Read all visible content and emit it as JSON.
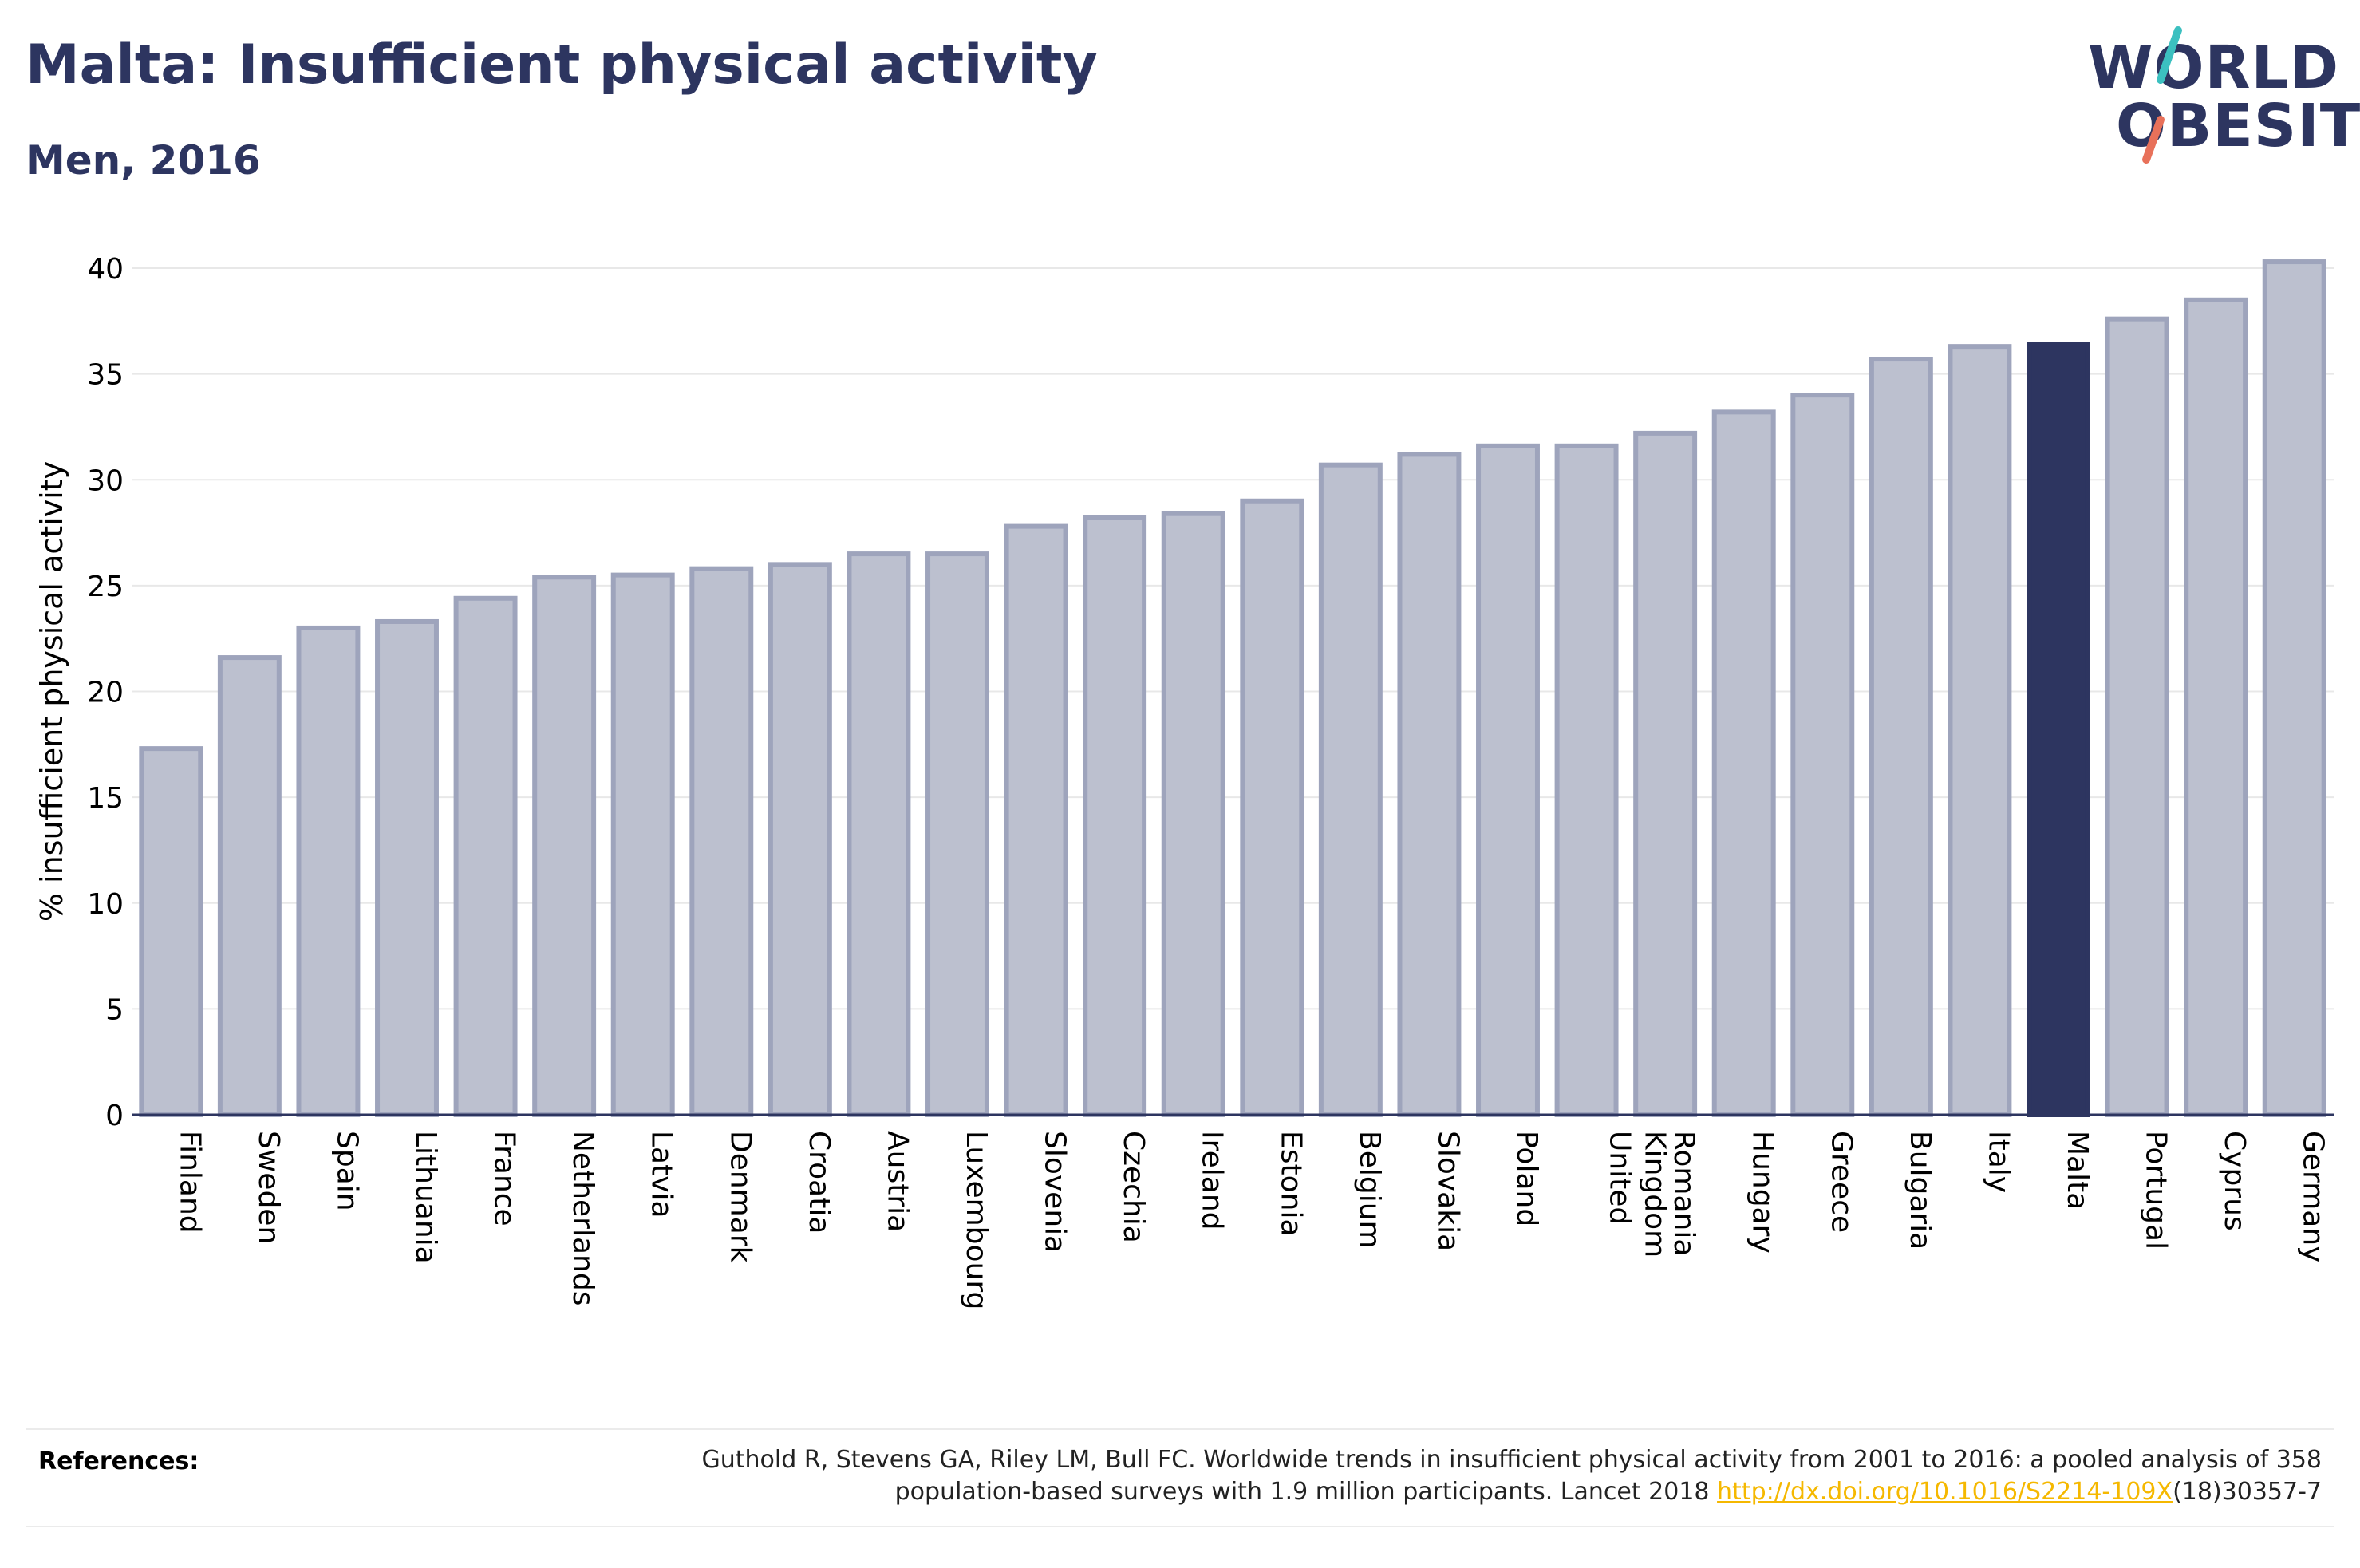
{
  "header": {
    "title": "Malta: Insufficient physical activity",
    "subtitle": "Men, 2016"
  },
  "logo": {
    "line1": "WORLD",
    "line2": "OBESITY"
  },
  "chart_data": {
    "type": "bar",
    "ylabel": "% insufficient physical activity",
    "xlabel": "",
    "ylim": [
      0,
      40
    ],
    "yticks": [
      0,
      5,
      10,
      15,
      20,
      25,
      30,
      35,
      40
    ],
    "categories": [
      "Finland",
      "Sweden",
      "Spain",
      "Lithuania",
      "France",
      "Netherlands",
      "Latvia",
      "Denmark",
      "Croatia",
      "Austria",
      "Luxembourg",
      "Slovenia",
      "Czechia",
      "Ireland",
      "Estonia",
      "Belgium",
      "Slovakia",
      "Poland",
      "United Kingdom",
      "Romania",
      "Hungary",
      "Greece",
      "Bulgaria",
      "Italy",
      "Malta",
      "Portugal",
      "Cyprus",
      "Germany"
    ],
    "values": [
      17.3,
      21.6,
      23.0,
      23.3,
      24.4,
      25.4,
      25.5,
      25.8,
      26.0,
      26.5,
      26.5,
      27.8,
      28.2,
      28.4,
      29.0,
      30.7,
      31.2,
      31.6,
      31.6,
      32.2,
      33.2,
      34.0,
      35.7,
      36.3,
      36.4,
      37.6,
      38.5,
      40.3
    ],
    "highlight": "Malta",
    "colors": {
      "bar_fill": "#bcc0cf",
      "bar_stroke": "#9ea4bc",
      "highlight": "#2d3560",
      "grid": "#e8e8e8",
      "axis": "#2d3560"
    },
    "grid": true
  },
  "references": {
    "label": "References:",
    "text_part1": "Guthold R, Stevens GA, Riley LM, Bull FC. Worldwide trends in insufficient physical activity from 2001 to 2016: a pooled analysis of 358 population-based surveys with 1.9 million participants. Lancet 2018 ",
    "link": "http://dx.doi.org/10.1016/S2214-109X",
    "text_part2": "(18)30357-7"
  }
}
